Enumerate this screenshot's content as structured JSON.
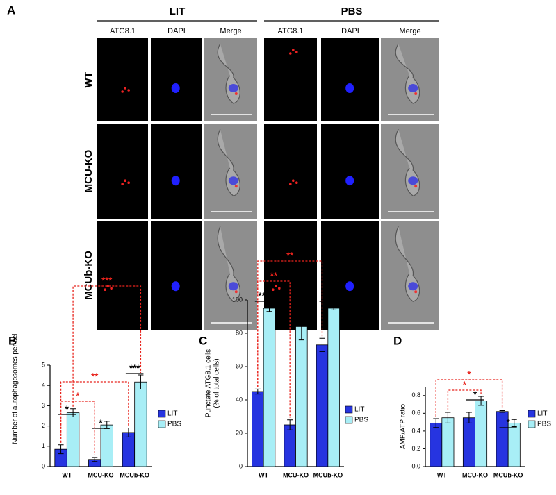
{
  "panel_a": {
    "label": "A",
    "groups": [
      "LIT",
      "PBS"
    ],
    "columns": [
      "ATG8.1",
      "DAPI",
      "Merge",
      "ATG8.1",
      "DAPI",
      "Merge"
    ],
    "rows": [
      "WT",
      "MCU-KO",
      "MCUb-KO"
    ]
  },
  "chart_data": [
    {
      "type": "bar",
      "panel_label": "B",
      "ylabel": [
        "Number of autophagosomes per cell"
      ],
      "categories": [
        "WT",
        "MCU-KO",
        "MCUb-KO"
      ],
      "series": [
        {
          "name": "LIT",
          "color": "#2634e0",
          "values": [
            0.85,
            0.35,
            1.68
          ],
          "errors": [
            0.22,
            0.1,
            0.22
          ]
        },
        {
          "name": "PBS",
          "color": "#a8eef6",
          "values": [
            2.65,
            2.05,
            4.17
          ],
          "errors": [
            0.2,
            0.18,
            0.35
          ]
        }
      ],
      "ylim": [
        0,
        5
      ],
      "yticks": [
        0,
        1,
        2,
        3,
        4,
        5
      ],
      "annotations": [
        {
          "text": "*",
          "color": "#000000"
        },
        {
          "text": "*",
          "color": "#000000"
        },
        {
          "text": "***",
          "color": "#000000"
        },
        {
          "text": "*",
          "color": "#e8231c"
        },
        {
          "text": "**",
          "color": "#e8231c"
        },
        {
          "text": "***",
          "color": "#e8231c"
        }
      ]
    },
    {
      "type": "bar",
      "panel_label": "C",
      "ylabel": [
        "Punctate ATG8.1 cells",
        "(% of total cells)"
      ],
      "categories": [
        "WT",
        "MCU-KO",
        "MCUb-KO"
      ],
      "series": [
        {
          "name": "LIT",
          "color": "#2634e0",
          "values": [
            45,
            25,
            73
          ],
          "errors": [
            1.5,
            3,
            4
          ]
        },
        {
          "name": "PBS",
          "color": "#a8eef6",
          "values": [
            95,
            84,
            95
          ],
          "errors": [
            2,
            8,
            1
          ]
        }
      ],
      "ylim": [
        0,
        100
      ],
      "yticks": [
        0,
        20,
        40,
        60,
        80,
        100
      ],
      "annotations": [
        {
          "text": "***",
          "color": "#000000"
        },
        {
          "text": "**",
          "color": "#000000"
        },
        {
          "text": "**",
          "color": "#000000"
        },
        {
          "text": "**",
          "color": "#e8231c"
        },
        {
          "text": "**",
          "color": "#e8231c"
        }
      ]
    },
    {
      "type": "bar",
      "panel_label": "D",
      "ylabel": [
        "AMP/ATP ratio"
      ],
      "categories": [
        "WT",
        "MCU-KO",
        "MCUb-KO"
      ],
      "series": [
        {
          "name": "LIT",
          "color": "#2634e0",
          "values": [
            0.49,
            0.55,
            0.62
          ],
          "errors": [
            0.05,
            0.06,
            0.01
          ]
        },
        {
          "name": "PBS",
          "color": "#a8eef6",
          "values": [
            0.55,
            0.74,
            0.49
          ],
          "errors": [
            0.06,
            0.05,
            0.04
          ]
        }
      ],
      "ylim": [
        0,
        0.9
      ],
      "yticks": [
        {
          "value": 0,
          "label": "0.0"
        },
        0.2,
        0.4,
        0.6,
        0.8
      ],
      "annotations": [
        {
          "text": "*",
          "color": "#000000"
        },
        {
          "text": "*",
          "color": "#000000"
        },
        {
          "text": "*",
          "color": "#e8231c"
        },
        {
          "text": "*",
          "color": "#e8231c"
        }
      ]
    }
  ]
}
